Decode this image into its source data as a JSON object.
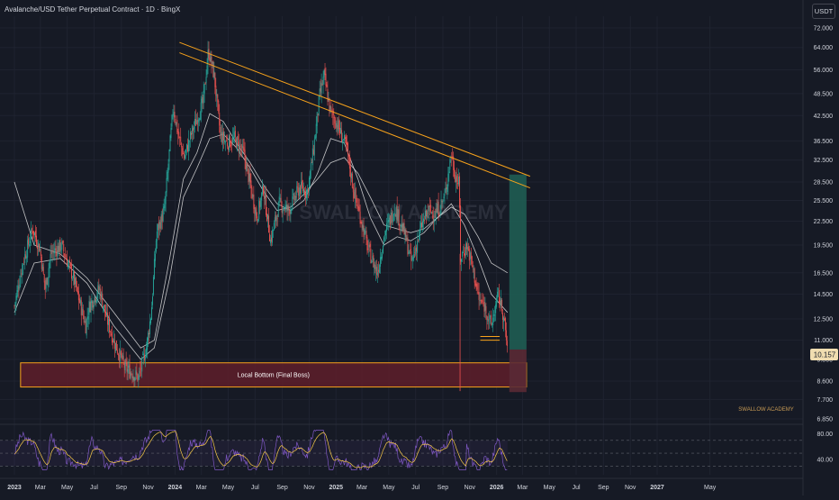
{
  "header": {
    "title": "Avalanche/USD Tether Perpetual Contract · 1D · BingX",
    "currency": "USDT"
  },
  "colors": {
    "background": "#161a25",
    "grid": "#1f2330",
    "text": "#d1d4dc",
    "candle_up": "#26a69a",
    "candle_down": "#ef5350",
    "trendline": "#f7a21b",
    "zone_fill": "#5e1f2a",
    "zone_border": "#f7a21b",
    "target_fill": "#1f5d53",
    "stop_fill": "#5a2a35",
    "rsi_line": "#7e57c2",
    "rsi_ma": "#f7c948",
    "ma_line": "#e0e0e0",
    "price_tag_bg": "#f0ddb0",
    "price_tag_text": "#161a25"
  },
  "chart_data": {
    "type": "candlestick",
    "price_axis": {
      "scale": "log",
      "ticks": [
        "72.000",
        "64.000",
        "56.000",
        "48.500",
        "42.500",
        "36.500",
        "32.500",
        "28.500",
        "25.500",
        "22.500",
        "19.500",
        "16.500",
        "14.500",
        "12.500",
        "11.000",
        "9.800",
        "8.600",
        "7.700",
        "6.850"
      ],
      "current_price": "10.157"
    },
    "time_axis": {
      "labels": [
        "2023",
        "Mar",
        "May",
        "Jul",
        "Sep",
        "Nov",
        "2024",
        "Mar",
        "May",
        "Jul",
        "Sep",
        "Nov",
        "2025",
        "Mar",
        "May",
        "Jul",
        "Sep",
        "Nov",
        "2026",
        "Mar",
        "May",
        "Jul",
        "Sep",
        "Nov",
        "2027",
        "May"
      ],
      "bold": [
        "2023",
        "2024",
        "2025",
        "2026",
        "2027"
      ]
    },
    "price_path": [
      [
        "2023-01-01",
        13.5
      ],
      [
        "2023-01-20",
        17.5
      ],
      [
        "2023-02-12",
        21.5
      ],
      [
        "2023-02-28",
        19.0
      ],
      [
        "2023-03-12",
        15.0
      ],
      [
        "2023-03-25",
        18.5
      ],
      [
        "2023-04-18",
        19.5
      ],
      [
        "2023-05-15",
        16.0
      ],
      [
        "2023-06-12",
        12.0
      ],
      [
        "2023-06-20",
        13.5
      ],
      [
        "2023-07-13",
        15.0
      ],
      [
        "2023-07-30",
        12.5
      ],
      [
        "2023-08-17",
        10.8
      ],
      [
        "2023-09-10",
        9.3
      ],
      [
        "2023-10-10",
        8.8
      ],
      [
        "2023-10-28",
        10.5
      ],
      [
        "2023-11-08",
        13.0
      ],
      [
        "2023-11-20",
        21.0
      ],
      [
        "2023-12-08",
        24.0
      ],
      [
        "2023-12-28",
        45.0
      ],
      [
        "2024-01-08",
        38.0
      ],
      [
        "2024-01-22",
        33.0
      ],
      [
        "2024-02-10",
        39.0
      ],
      [
        "2024-03-05",
        46.0
      ],
      [
        "2024-03-17",
        63.0
      ],
      [
        "2024-03-30",
        54.0
      ],
      [
        "2024-04-13",
        38.0
      ],
      [
        "2024-04-28",
        36.0
      ],
      [
        "2024-05-15",
        37.0
      ],
      [
        "2024-06-05",
        34.0
      ],
      [
        "2024-06-20",
        28.0
      ],
      [
        "2024-07-05",
        23.0
      ],
      [
        "2024-07-20",
        27.5
      ],
      [
        "2024-08-05",
        20.0
      ],
      [
        "2024-08-25",
        25.0
      ],
      [
        "2024-09-15",
        24.0
      ],
      [
        "2024-10-10",
        27.5
      ],
      [
        "2024-10-28",
        27.0
      ],
      [
        "2024-11-10",
        34.0
      ],
      [
        "2024-11-25",
        48.0
      ],
      [
        "2024-12-05",
        54.0
      ],
      [
        "2024-12-18",
        44.0
      ],
      [
        "2025-01-05",
        40.0
      ],
      [
        "2025-01-25",
        35.0
      ],
      [
        "2025-02-10",
        27.0
      ],
      [
        "2025-02-28",
        22.5
      ],
      [
        "2025-03-15",
        19.0
      ],
      [
        "2025-04-05",
        16.5
      ],
      [
        "2025-04-22",
        21.0
      ],
      [
        "2025-05-15",
        24.5
      ],
      [
        "2025-06-05",
        21.0
      ],
      [
        "2025-06-22",
        17.5
      ],
      [
        "2025-07-15",
        22.0
      ],
      [
        "2025-07-30",
        24.0
      ],
      [
        "2025-08-15",
        23.5
      ],
      [
        "2025-09-05",
        26.0
      ],
      [
        "2025-09-20",
        34.0
      ],
      [
        "2025-09-28",
        30.0
      ],
      [
        "2025-10-08",
        28.0
      ],
      [
        "2025-10-11",
        18.0
      ],
      [
        "2025-10-25",
        19.5
      ],
      [
        "2025-11-08",
        17.0
      ],
      [
        "2025-11-22",
        14.0
      ],
      [
        "2025-12-05",
        13.5
      ],
      [
        "2025-12-20",
        12.0
      ],
      [
        "2026-01-05",
        14.5
      ],
      [
        "2026-01-15",
        13.0
      ],
      [
        "2026-01-26",
        10.4
      ]
    ],
    "moving_averages": [
      {
        "name": "MA fast",
        "points": [
          [
            "2023-01-01",
            28.5
          ],
          [
            "2023-02-15",
            19.5
          ],
          [
            "2023-04-15",
            18.5
          ],
          [
            "2023-06-15",
            16.0
          ],
          [
            "2023-08-15",
            13.0
          ],
          [
            "2023-10-15",
            10.5
          ],
          [
            "2023-11-15",
            11.0
          ],
          [
            "2023-12-20",
            18.0
          ],
          [
            "2024-01-20",
            29.0
          ],
          [
            "2024-02-20",
            34.0
          ],
          [
            "2024-03-20",
            43.0
          ],
          [
            "2024-04-20",
            41.0
          ],
          [
            "2024-05-20",
            36.0
          ],
          [
            "2024-06-20",
            32.0
          ],
          [
            "2024-07-20",
            28.0
          ],
          [
            "2024-08-20",
            25.0
          ],
          [
            "2024-09-20",
            24.0
          ],
          [
            "2024-10-20",
            25.5
          ],
          [
            "2024-11-20",
            30.0
          ],
          [
            "2024-12-20",
            37.0
          ],
          [
            "2025-01-20",
            36.0
          ],
          [
            "2025-02-20",
            29.0
          ],
          [
            "2025-03-20",
            23.0
          ],
          [
            "2025-04-20",
            19.5
          ],
          [
            "2025-05-20",
            20.5
          ],
          [
            "2025-06-20",
            20.0
          ],
          [
            "2025-07-20",
            21.0
          ],
          [
            "2025-08-20",
            23.0
          ],
          [
            "2025-09-20",
            25.0
          ],
          [
            "2025-10-20",
            22.0
          ],
          [
            "2025-11-20",
            18.0
          ],
          [
            "2025-12-20",
            14.5
          ],
          [
            "2026-01-26",
            13.0
          ]
        ]
      },
      {
        "name": "MA slow",
        "points": [
          [
            "2023-01-01",
            13.0
          ],
          [
            "2023-02-15",
            17.5
          ],
          [
            "2023-04-15",
            18.0
          ],
          [
            "2023-06-15",
            15.5
          ],
          [
            "2023-08-15",
            12.0
          ],
          [
            "2023-10-15",
            9.8
          ],
          [
            "2023-11-15",
            10.5
          ],
          [
            "2023-12-20",
            16.0
          ],
          [
            "2024-01-20",
            26.0
          ],
          [
            "2024-02-20",
            31.0
          ],
          [
            "2024-03-20",
            37.0
          ],
          [
            "2024-04-20",
            38.0
          ],
          [
            "2024-05-20",
            35.0
          ],
          [
            "2024-06-20",
            31.0
          ],
          [
            "2024-07-20",
            27.0
          ],
          [
            "2024-08-20",
            24.0
          ],
          [
            "2024-09-20",
            24.5
          ],
          [
            "2024-10-20",
            26.5
          ],
          [
            "2024-11-20",
            29.0
          ],
          [
            "2024-12-20",
            32.0
          ],
          [
            "2025-01-20",
            33.0
          ],
          [
            "2025-02-20",
            30.0
          ],
          [
            "2025-03-20",
            26.0
          ],
          [
            "2025-04-20",
            22.0
          ],
          [
            "2025-05-20",
            21.5
          ],
          [
            "2025-06-20",
            21.0
          ],
          [
            "2025-07-20",
            21.5
          ],
          [
            "2025-08-20",
            23.0
          ],
          [
            "2025-09-20",
            24.5
          ],
          [
            "2025-10-20",
            23.5
          ],
          [
            "2025-11-20",
            20.5
          ],
          [
            "2025-12-20",
            17.5
          ],
          [
            "2026-01-26",
            16.5
          ]
        ]
      }
    ],
    "trendlines": [
      {
        "from": [
          "2024-01-01",
          66.0
        ],
        "to": [
          "2026-01-26",
          29.5
        ]
      },
      {
        "from": [
          "2024-01-01",
          62.0
        ],
        "to": [
          "2026-01-26",
          27.5
        ]
      }
    ],
    "support_zone": {
      "label": "Local Bottom (Final Boss)",
      "from": "2023-01-15",
      "to": "2026-03-10",
      "low": 8.3,
      "high": 9.6
    },
    "position": {
      "from": "2026-01-30",
      "to": "2026-03-10",
      "entry": 10.4,
      "target": 29.8,
      "stop": 8.05
    },
    "support_lines": [
      {
        "from": "2025-11-25",
        "to": "2026-01-08",
        "price": 11.0
      },
      {
        "from": "2025-11-25",
        "to": "2026-01-08",
        "price": 11.25
      }
    ],
    "oscillator": {
      "name": "RSI",
      "ticks": [
        "80.00",
        "40.00"
      ],
      "upper_band": 70,
      "lower_band": 30,
      "visible_range": [
        22,
        88
      ]
    },
    "watermark": "SWALLOW ACADEMY",
    "attribution": "SWALLOW ACADEMY"
  }
}
